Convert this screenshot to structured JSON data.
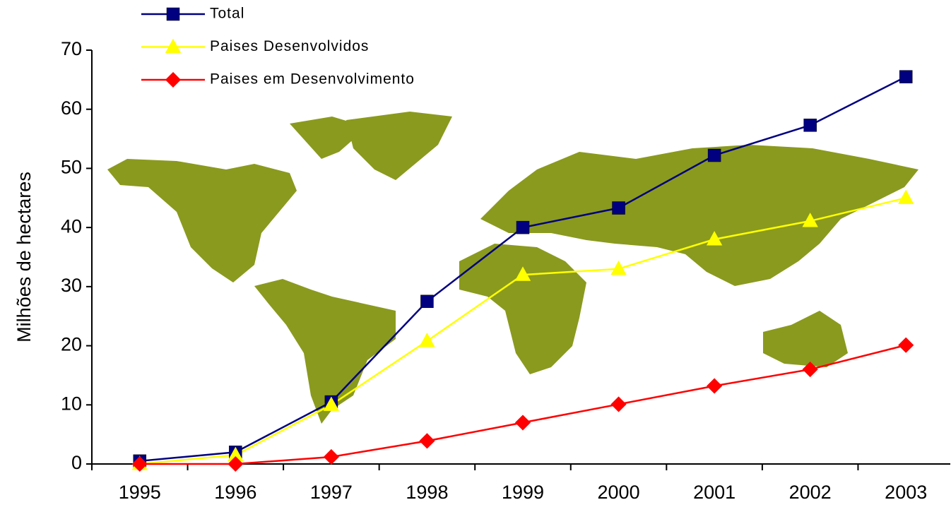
{
  "chart_data": {
    "type": "line",
    "y_label": "Milhões de hectares",
    "categories": [
      "1995",
      "1996",
      "1997",
      "1998",
      "1999",
      "2000",
      "2001",
      "2002",
      "2003"
    ],
    "series": [
      {
        "name": "Total",
        "color": "#000080",
        "marker": "square",
        "values": [
          0.5,
          2,
          10.5,
          27.5,
          40,
          43.3,
          52.2,
          57.3,
          65.5
        ]
      },
      {
        "name": "Paises Desenvolvidos",
        "color": "#ffff00",
        "marker": "triangle",
        "values": [
          0,
          1.5,
          10,
          20.8,
          32,
          33,
          38,
          41.1,
          45
        ]
      },
      {
        "name": "Paises em Desenvolvimento",
        "color": "#ff0000",
        "marker": "diamond",
        "values": [
          0,
          0,
          1.2,
          3.9,
          7,
          10.1,
          13.2,
          16,
          20.1
        ]
      }
    ],
    "ylim": [
      0,
      70
    ],
    "yticks": [
      0,
      10,
      20,
      30,
      40,
      50,
      60,
      70
    ],
    "grid": false,
    "legend": "top-left"
  }
}
